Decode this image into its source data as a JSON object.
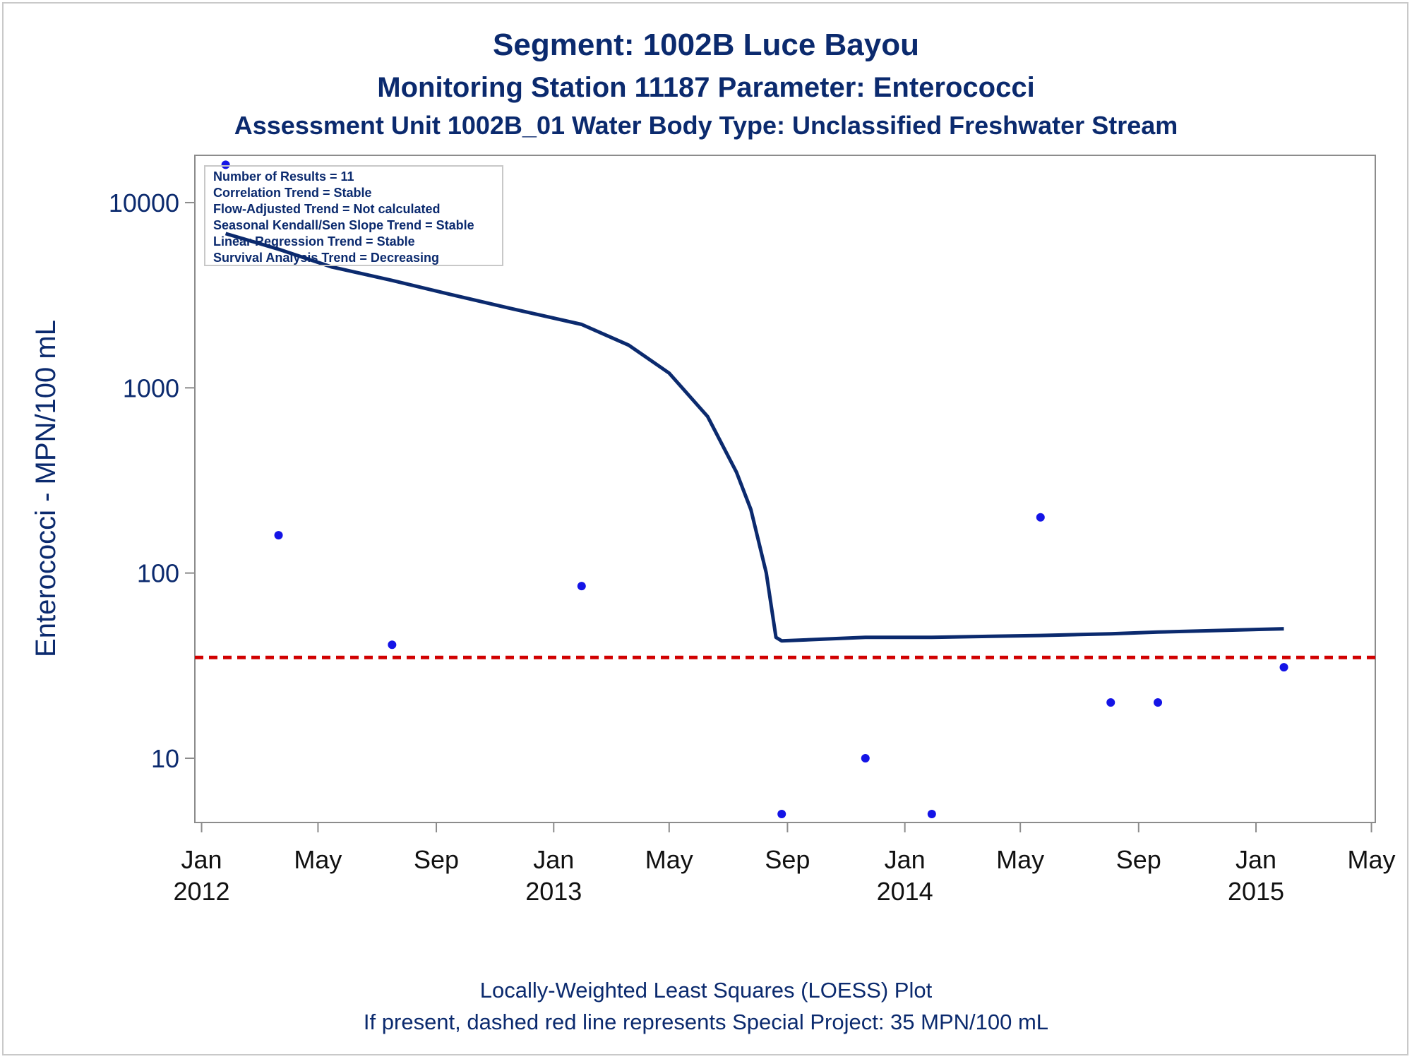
{
  "title": "Segment: 1002B  Luce Bayou",
  "subtitle1": "Monitoring Station 11187 Parameter: Enterococci",
  "subtitle2": "Assessment Unit 1002B_01   Water Body Type: Unclassified Freshwater Stream",
  "footer1": "Locally-Weighted Least Squares (LOESS) Plot",
  "footer2": "If present, dashed red line represents Special Project: 35 MPN/100 mL",
  "stats_box": [
    "Number of Results = 11",
    "Correlation Trend = Stable",
    "Flow-Adjusted Trend = Not calculated",
    "Seasonal Kendall/Sen Slope Trend = Stable",
    "Linear Regression Trend = Stable",
    "Survival Analysis Trend = Decreasing"
  ],
  "colors": {
    "text": "#0b2a6e",
    "points": "#1414e6",
    "loess": "#0b2a6e",
    "reference": "#d10000",
    "axis": "#8c8c8c"
  },
  "chart_data": {
    "type": "scatter",
    "ylabel": "Enterococci - MPN/100 mL",
    "xlabel": "",
    "y_scale": "log",
    "ylim": [
      4.5,
      18000
    ],
    "xlim": [
      "2011-12-25",
      "2015-05-05"
    ],
    "y_ticks": [
      10,
      100,
      1000,
      10000
    ],
    "x_ticks": [
      {
        "date": "2012-01-01",
        "label": "Jan",
        "year": "2012"
      },
      {
        "date": "2012-05-01",
        "label": "May",
        "year": ""
      },
      {
        "date": "2012-09-01",
        "label": "Sep",
        "year": ""
      },
      {
        "date": "2013-01-01",
        "label": "Jan",
        "year": "2013"
      },
      {
        "date": "2013-05-01",
        "label": "May",
        "year": ""
      },
      {
        "date": "2013-09-01",
        "label": "Sep",
        "year": ""
      },
      {
        "date": "2014-01-01",
        "label": "Jan",
        "year": "2014"
      },
      {
        "date": "2014-05-01",
        "label": "May",
        "year": ""
      },
      {
        "date": "2014-09-01",
        "label": "Sep",
        "year": ""
      },
      {
        "date": "2015-01-01",
        "label": "Jan",
        "year": "2015"
      },
      {
        "date": "2015-05-01",
        "label": "May",
        "year": ""
      }
    ],
    "points": [
      {
        "date": "2012-01-26",
        "value": 16000
      },
      {
        "date": "2012-03-21",
        "value": 160
      },
      {
        "date": "2012-07-17",
        "value": 41
      },
      {
        "date": "2013-01-30",
        "value": 85
      },
      {
        "date": "2013-08-26",
        "value": 5
      },
      {
        "date": "2013-11-21",
        "value": 10
      },
      {
        "date": "2014-01-29",
        "value": 5
      },
      {
        "date": "2014-05-22",
        "value": 200
      },
      {
        "date": "2014-08-03",
        "value": 20
      },
      {
        "date": "2014-09-21",
        "value": 20
      },
      {
        "date": "2015-01-30",
        "value": 31
      }
    ],
    "loess": [
      {
        "date": "2012-01-26",
        "value": 6800
      },
      {
        "date": "2012-03-21",
        "value": 5600
      },
      {
        "date": "2012-05-15",
        "value": 4500
      },
      {
        "date": "2012-07-17",
        "value": 3800
      },
      {
        "date": "2012-09-15",
        "value": 3200
      },
      {
        "date": "2012-11-15",
        "value": 2700
      },
      {
        "date": "2013-01-30",
        "value": 2200
      },
      {
        "date": "2013-03-20",
        "value": 1700
      },
      {
        "date": "2013-05-01",
        "value": 1200
      },
      {
        "date": "2013-06-10",
        "value": 700
      },
      {
        "date": "2013-07-10",
        "value": 350
      },
      {
        "date": "2013-07-25",
        "value": 220
      },
      {
        "date": "2013-08-10",
        "value": 100
      },
      {
        "date": "2013-08-20",
        "value": 45
      },
      {
        "date": "2013-08-26",
        "value": 43
      },
      {
        "date": "2013-11-21",
        "value": 45
      },
      {
        "date": "2014-01-29",
        "value": 45
      },
      {
        "date": "2014-05-22",
        "value": 46
      },
      {
        "date": "2014-08-03",
        "value": 47
      },
      {
        "date": "2014-09-21",
        "value": 48
      },
      {
        "date": "2015-01-30",
        "value": 50
      }
    ],
    "reference_line": {
      "value": 35,
      "label": "Special Project: 35 MPN/100 mL"
    }
  }
}
